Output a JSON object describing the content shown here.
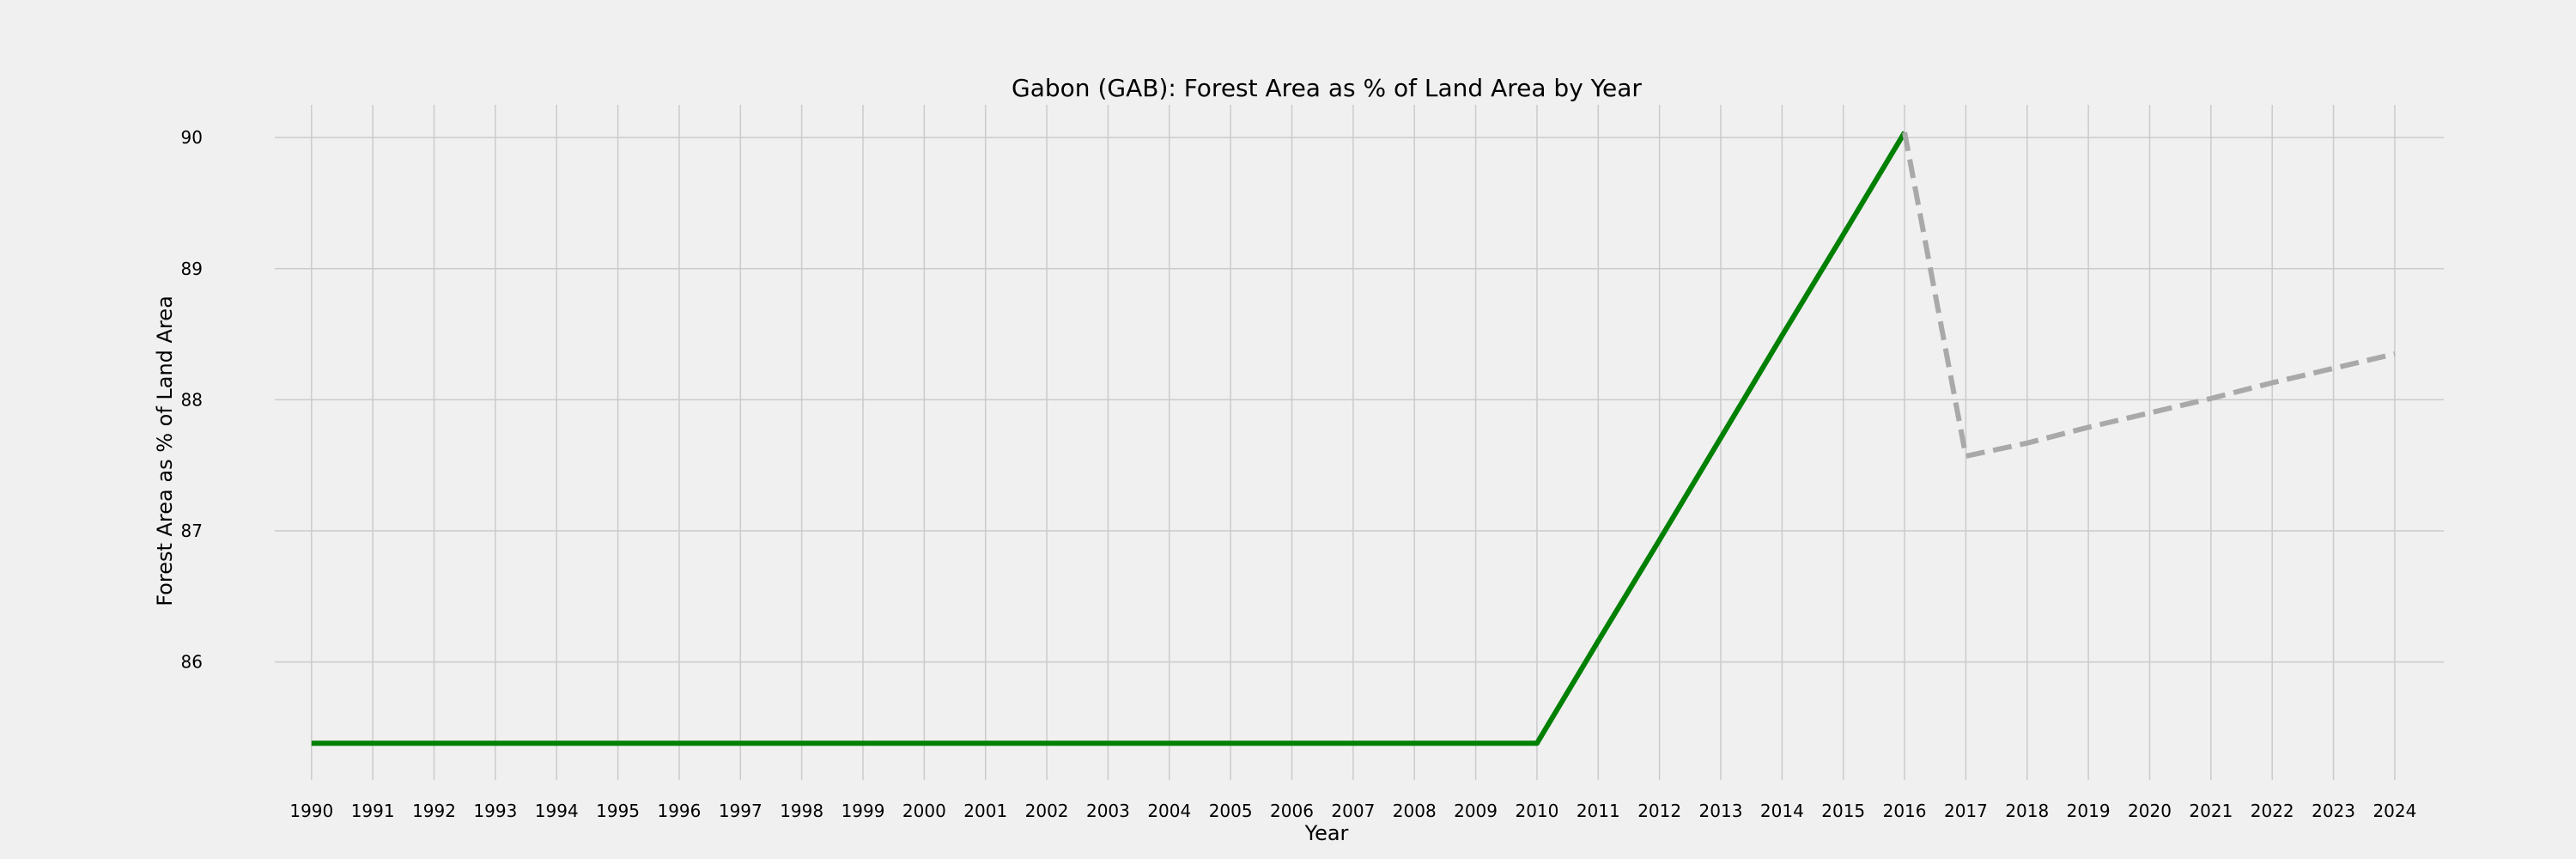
{
  "chart_data": {
    "type": "line",
    "title": "Gabon (GAB): Forest Area as % of Land Area by Year",
    "xlabel": "Year",
    "ylabel": "Forest Area as % of Land Area",
    "x": [
      1990,
      1991,
      1992,
      1993,
      1994,
      1995,
      1996,
      1997,
      1998,
      1999,
      2000,
      2001,
      2002,
      2003,
      2004,
      2005,
      2006,
      2007,
      2008,
      2009,
      2010,
      2011,
      2012,
      2013,
      2014,
      2015,
      2016,
      2017,
      2018,
      2019,
      2020,
      2021,
      2022,
      2023,
      2024
    ],
    "xlim": [
      1989.4,
      2024.8
    ],
    "ylim": [
      85.1,
      90.25
    ],
    "yticks": [
      86,
      87,
      88,
      89,
      90
    ],
    "grid": true,
    "series": [
      {
        "style": "solid",
        "color": "#008000",
        "x": [
          1990,
          1991,
          1992,
          1993,
          1994,
          1995,
          1996,
          1997,
          1998,
          1999,
          2000,
          2001,
          2002,
          2003,
          2004,
          2005,
          2006,
          2007,
          2008,
          2009,
          2010,
          2011,
          2012,
          2013,
          2014,
          2015,
          2016
        ],
        "values": [
          85.38,
          85.38,
          85.38,
          85.38,
          85.38,
          85.38,
          85.38,
          85.38,
          85.38,
          85.38,
          85.38,
          85.38,
          85.38,
          85.38,
          85.38,
          85.38,
          85.38,
          85.38,
          85.38,
          85.38,
          85.38,
          86.16,
          86.93,
          87.71,
          88.49,
          89.26,
          90.04
        ]
      },
      {
        "style": "dashed",
        "color": "#a9a9a9",
        "x": [
          2016,
          2017,
          2018,
          2019,
          2020,
          2021,
          2022,
          2023,
          2024
        ],
        "values": [
          90.04,
          87.57,
          87.67,
          87.79,
          87.9,
          88.01,
          88.13,
          88.24,
          88.35
        ]
      }
    ]
  }
}
